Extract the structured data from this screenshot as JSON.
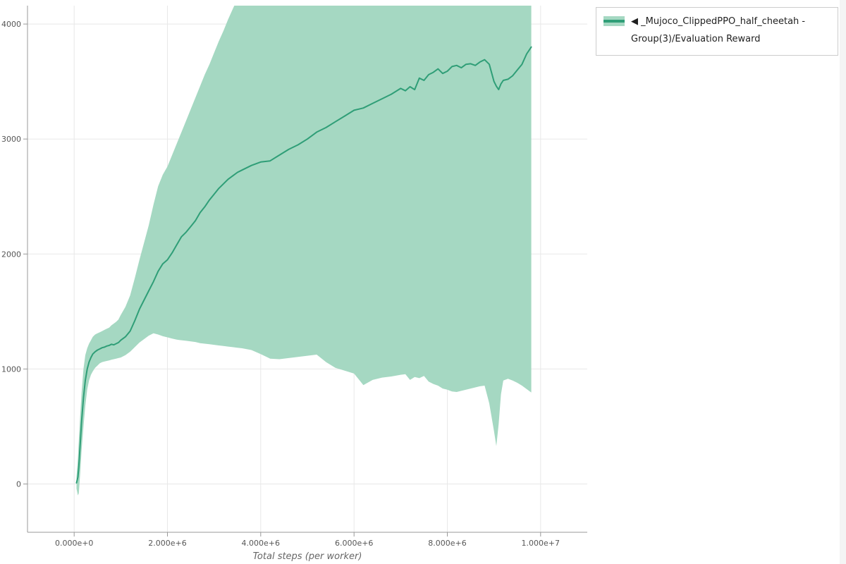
{
  "colors": {
    "line": "#2f9e77",
    "band": "#a5d8c2",
    "grid": "#e8e8e8",
    "axis": "#999999",
    "tick_label": "#565656",
    "axis_label": "#666666"
  },
  "legend": {
    "label": "◀ _Mujoco_ClippedPPO_half_cheetah - Group(3)/Evaluation Reward"
  },
  "chart_data": {
    "type": "line",
    "title": "",
    "xlabel": "Total steps (per worker)",
    "ylabel": "",
    "grid": true,
    "legend_position": "top-right",
    "xlim": [
      -1000000,
      11000000
    ],
    "ylim": [
      -420,
      4160
    ],
    "x_ticks": [
      0,
      2000000,
      4000000,
      6000000,
      8000000,
      10000000
    ],
    "x_tick_labels": [
      "0.000e+0",
      "2.000e+6",
      "4.000e+6",
      "6.000e+6",
      "8.000e+6",
      "1.000e+7"
    ],
    "y_ticks": [
      0,
      1000,
      2000,
      3000,
      4000
    ],
    "y_tick_labels": [
      "0",
      "1000",
      "2000",
      "3000",
      "4000"
    ],
    "series": [
      {
        "name": "◀ _Mujoco_ClippedPPO_half_cheetah - Group(3)/Evaluation Reward",
        "color": "#2f9e77",
        "band_color": "#a5d8c2",
        "x": [
          50000,
          80000,
          100000,
          130000,
          160000,
          200000,
          240000,
          280000,
          320000,
          360000,
          400000,
          450000,
          500000,
          550000,
          600000,
          650000,
          700000,
          750000,
          800000,
          850000,
          900000,
          950000,
          1000000,
          1100000,
          1200000,
          1300000,
          1400000,
          1500000,
          1600000,
          1700000,
          1800000,
          1900000,
          2000000,
          2100000,
          2200000,
          2300000,
          2400000,
          2500000,
          2600000,
          2700000,
          2800000,
          2900000,
          3000000,
          3100000,
          3200000,
          3300000,
          3400000,
          3500000,
          3600000,
          3800000,
          4000000,
          4200000,
          4400000,
          4600000,
          4800000,
          5000000,
          5200000,
          5400000,
          5600000,
          5800000,
          6000000,
          6200000,
          6400000,
          6600000,
          6800000,
          7000000,
          7100000,
          7200000,
          7300000,
          7400000,
          7500000,
          7600000,
          7700000,
          7800000,
          7900000,
          8000000,
          8100000,
          8200000,
          8300000,
          8400000,
          8500000,
          8600000,
          8700000,
          8800000,
          8900000,
          9000000,
          9050000,
          9100000,
          9150000,
          9200000,
          9300000,
          9400000,
          9500000,
          9600000,
          9700000,
          9800000
        ],
        "mean": [
          10,
          60,
          150,
          350,
          550,
          750,
          900,
          1000,
          1060,
          1100,
          1130,
          1150,
          1165,
          1175,
          1185,
          1190,
          1200,
          1205,
          1215,
          1210,
          1220,
          1230,
          1250,
          1280,
          1330,
          1420,
          1520,
          1600,
          1680,
          1760,
          1850,
          1915,
          1950,
          2010,
          2080,
          2150,
          2190,
          2240,
          2290,
          2360,
          2410,
          2470,
          2520,
          2570,
          2610,
          2650,
          2680,
          2710,
          2730,
          2770,
          2800,
          2810,
          2860,
          2910,
          2950,
          3000,
          3060,
          3100,
          3150,
          3200,
          3250,
          3270,
          3310,
          3350,
          3390,
          3440,
          3420,
          3455,
          3430,
          3530,
          3510,
          3560,
          3580,
          3610,
          3570,
          3590,
          3630,
          3640,
          3620,
          3650,
          3655,
          3640,
          3670,
          3690,
          3650,
          3500,
          3460,
          3430,
          3480,
          3510,
          3520,
          3550,
          3600,
          3650,
          3740,
          3800
        ],
        "lower": [
          -40,
          -100,
          -80,
          100,
          300,
          500,
          680,
          820,
          900,
          950,
          980,
          1010,
          1030,
          1050,
          1060,
          1065,
          1070,
          1075,
          1080,
          1085,
          1090,
          1095,
          1100,
          1120,
          1150,
          1190,
          1230,
          1260,
          1290,
          1310,
          1300,
          1285,
          1275,
          1265,
          1255,
          1250,
          1245,
          1240,
          1235,
          1225,
          1220,
          1215,
          1210,
          1205,
          1200,
          1195,
          1190,
          1185,
          1180,
          1165,
          1130,
          1090,
          1085,
          1095,
          1105,
          1115,
          1125,
          1060,
          1010,
          985,
          960,
          860,
          905,
          925,
          935,
          950,
          955,
          905,
          930,
          920,
          940,
          890,
          870,
          855,
          830,
          820,
          805,
          800,
          810,
          820,
          830,
          840,
          850,
          855,
          700,
          460,
          330,
          520,
          780,
          900,
          915,
          900,
          880,
          855,
          825,
          795
        ],
        "upper": [
          60,
          220,
          380,
          600,
          800,
          1000,
          1120,
          1180,
          1220,
          1250,
          1280,
          1300,
          1310,
          1320,
          1330,
          1340,
          1350,
          1360,
          1380,
          1395,
          1410,
          1430,
          1470,
          1540,
          1640,
          1790,
          1950,
          2100,
          2250,
          2430,
          2590,
          2690,
          2760,
          2860,
          2960,
          3060,
          3160,
          3260,
          3360,
          3460,
          3560,
          3650,
          3750,
          3850,
          3940,
          4040,
          4130,
          4220,
          4300,
          4420,
          4480,
          4520,
          4560,
          4600,
          4640,
          4670,
          4700,
          4720,
          4740,
          4760,
          4780,
          4790,
          4800,
          4810,
          4820,
          4830,
          4835,
          4840,
          4845,
          4850,
          4855,
          4860,
          4865,
          4870,
          4875,
          4880,
          4885,
          4890,
          4895,
          4900,
          4905,
          4910,
          4915,
          4920,
          4925,
          4930,
          4932,
          4935,
          4940,
          4945,
          4950,
          4955,
          4960,
          4965,
          4970,
          4975
        ]
      }
    ]
  }
}
